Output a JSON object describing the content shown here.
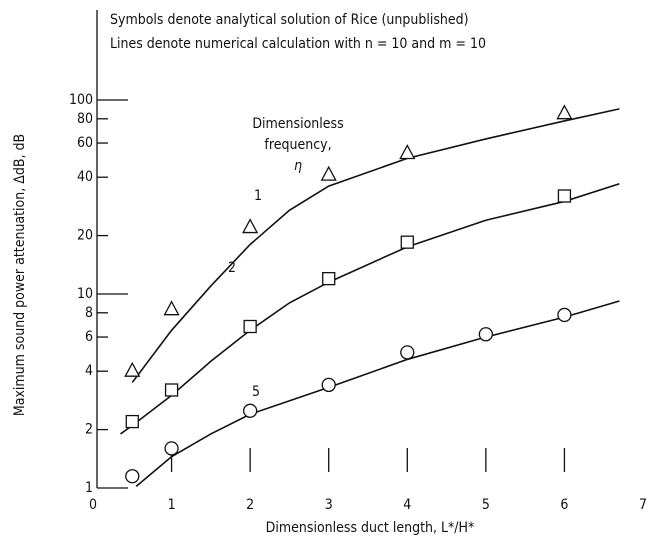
{
  "chart_data": {
    "type": "line",
    "title_lines": [
      "Symbols denote analytical solution of Rice (unpublished)",
      "Lines denote numerical calculation with  n = 10  and  m = 10"
    ],
    "annotation_lines": [
      "Dimensionless",
      "frequency,",
      "η"
    ],
    "x_label": "Dimensionless duct length, L*/H*",
    "y_label": "Maximum sound power attenuation, ΔdB, dB",
    "xlim": [
      0,
      7
    ],
    "xticks": [
      0,
      1,
      2,
      3,
      4,
      5,
      6,
      7
    ],
    "ylim": [
      1,
      100
    ],
    "yticks": [
      1,
      2,
      4,
      6,
      8,
      10,
      20,
      40,
      60,
      80,
      100
    ],
    "log_y": true,
    "series": [
      {
        "name": "1",
        "x": [
          0.5,
          1,
          1.5,
          2,
          2.5,
          3,
          4,
          5,
          6,
          6.7
        ],
        "values": [
          3.5,
          6.5,
          11,
          18,
          27,
          36,
          50,
          63,
          78,
          90
        ]
      },
      {
        "name": "2",
        "x": [
          0.35,
          0.5,
          1,
          1.5,
          2,
          2.5,
          3,
          4,
          5,
          6,
          6.7
        ],
        "values": [
          1.9,
          2.1,
          3.0,
          4.5,
          6.5,
          9,
          11.5,
          17.5,
          24,
          30,
          37
        ]
      },
      {
        "name": "5",
        "x": [
          0.55,
          1,
          1.5,
          2,
          3,
          4,
          5,
          6,
          6.7
        ],
        "values": [
          1.02,
          1.45,
          1.9,
          2.4,
          3.3,
          4.6,
          6,
          7.6,
          9.2
        ]
      }
    ],
    "symbols": [
      {
        "marker": "triangle",
        "x": [
          0.5,
          1,
          2,
          3,
          4,
          6
        ],
        "values": [
          4.0,
          8.3,
          22,
          41,
          53,
          85
        ]
      },
      {
        "marker": "square",
        "x": [
          0.5,
          1,
          2,
          3,
          4,
          6
        ],
        "values": [
          2.2,
          3.2,
          6.8,
          12,
          18.5,
          32
        ]
      },
      {
        "marker": "circle",
        "x": [
          0.5,
          1,
          2,
          3,
          4,
          5,
          6
        ],
        "values": [
          1.15,
          1.6,
          2.5,
          3.4,
          5.0,
          6.2,
          7.8
        ]
      }
    ]
  }
}
